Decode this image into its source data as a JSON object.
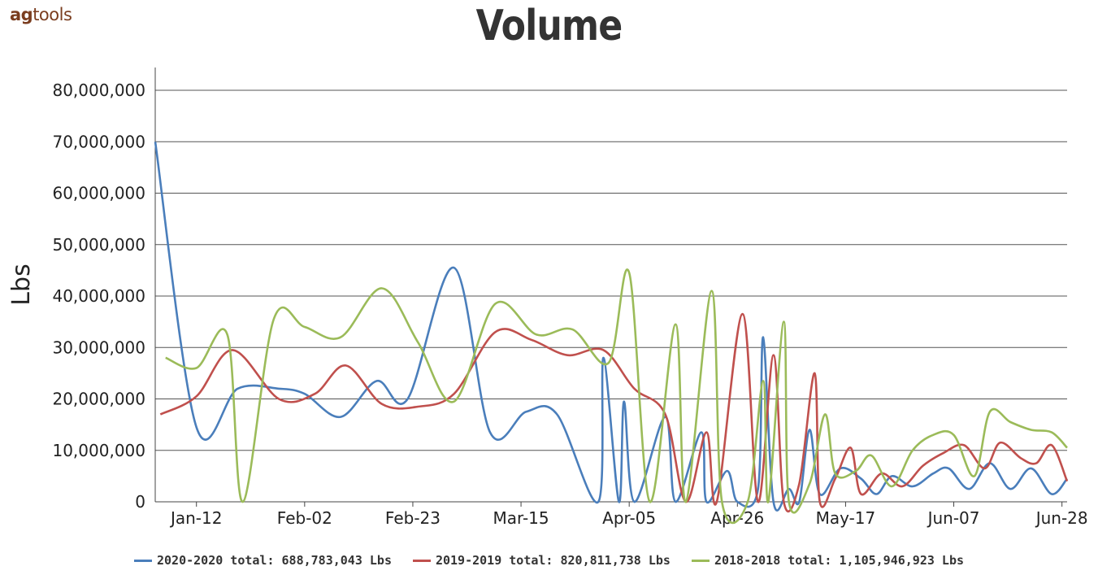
{
  "header": {
    "logo_ag": "ag",
    "logo_tools": "tools",
    "title": "Volume"
  },
  "chart_data": {
    "type": "line",
    "title": "Volume",
    "xlabel": "",
    "ylabel": "Lbs",
    "ylim": [
      0,
      80000000
    ],
    "yticks": [
      0,
      10000000,
      20000000,
      30000000,
      40000000,
      50000000,
      60000000,
      70000000,
      80000000
    ],
    "ytick_labels": [
      "0",
      "10,000,000",
      "20,000,000",
      "30,000,000",
      "40,000,000",
      "50,000,000",
      "60,000,000",
      "70,000,000",
      "80,000,000"
    ],
    "xlim": [
      "2020-01-04",
      "2020-06-29"
    ],
    "xtick_labels": [
      "Jan-12",
      "Feb-02",
      "Feb-23",
      "Mar-15",
      "Apr-05",
      "Apr-26",
      "May-17",
      "Jun-07",
      "Jun-28"
    ],
    "xtick_dates": [
      "2020-01-12",
      "2020-02-02",
      "2020-02-23",
      "2020-03-15",
      "2020-04-05",
      "2020-04-26",
      "2020-05-17",
      "2020-06-07",
      "2020-06-28"
    ],
    "grid": "horizontal",
    "legend_position": "bottom",
    "series": [
      {
        "name": "2020-2020 total: 688,783,043 Lbs",
        "color": "#4a7ebb",
        "points": [
          [
            "2020-01-04",
            70000000
          ],
          [
            "2020-01-12",
            14500000
          ],
          [
            "2020-01-20",
            22000000
          ],
          [
            "2020-01-28",
            22000000
          ],
          [
            "2020-02-02",
            21000000
          ],
          [
            "2020-02-09",
            16500000
          ],
          [
            "2020-02-16",
            23500000
          ],
          [
            "2020-02-22",
            20000000
          ],
          [
            "2020-03-02",
            45500000
          ],
          [
            "2020-03-09",
            13500000
          ],
          [
            "2020-03-16",
            17500000
          ],
          [
            "2020-03-22",
            17000000
          ],
          [
            "2020-03-30",
            0
          ],
          [
            "2020-03-31",
            28000000
          ],
          [
            "2020-04-03",
            0
          ],
          [
            "2020-04-04",
            19500000
          ],
          [
            "2020-04-06",
            0
          ],
          [
            "2020-04-12",
            16500000
          ],
          [
            "2020-04-14",
            0
          ],
          [
            "2020-04-19",
            13500000
          ],
          [
            "2020-04-20",
            0
          ],
          [
            "2020-04-24",
            6000000
          ],
          [
            "2020-04-26",
            0
          ],
          [
            "2020-04-30",
            2500000
          ],
          [
            "2020-05-01",
            32000000
          ],
          [
            "2020-05-03",
            0
          ],
          [
            "2020-05-06",
            2500000
          ],
          [
            "2020-05-08",
            0
          ],
          [
            "2020-05-10",
            14000000
          ],
          [
            "2020-05-12",
            1500000
          ],
          [
            "2020-05-16",
            6500000
          ],
          [
            "2020-05-20",
            4500000
          ],
          [
            "2020-05-23",
            1500000
          ],
          [
            "2020-05-26",
            5000000
          ],
          [
            "2020-05-30",
            3000000
          ],
          [
            "2020-06-03",
            5500000
          ],
          [
            "2020-06-06",
            6500000
          ],
          [
            "2020-06-10",
            2500000
          ],
          [
            "2020-06-14",
            7500000
          ],
          [
            "2020-06-18",
            2500000
          ],
          [
            "2020-06-22",
            6500000
          ],
          [
            "2020-06-26",
            1500000
          ],
          [
            "2020-06-29",
            4500000
          ]
        ]
      },
      {
        "name": "2019-2019 total: 820,811,738 Lbs",
        "color": "#c0504d",
        "points": [
          [
            "2020-01-05",
            17000000
          ],
          [
            "2020-01-12",
            20500000
          ],
          [
            "2020-01-19",
            29500000
          ],
          [
            "2020-01-28",
            20000000
          ],
          [
            "2020-02-04",
            21000000
          ],
          [
            "2020-02-10",
            26500000
          ],
          [
            "2020-02-17",
            19000000
          ],
          [
            "2020-02-24",
            18500000
          ],
          [
            "2020-03-02",
            21000000
          ],
          [
            "2020-03-10",
            33000000
          ],
          [
            "2020-03-17",
            31500000
          ],
          [
            "2020-03-24",
            28500000
          ],
          [
            "2020-03-31",
            29500000
          ],
          [
            "2020-04-06",
            22000000
          ],
          [
            "2020-04-12",
            17000000
          ],
          [
            "2020-04-16",
            0
          ],
          [
            "2020-04-20",
            13500000
          ],
          [
            "2020-04-22",
            0
          ],
          [
            "2020-04-27",
            36500000
          ],
          [
            "2020-04-30",
            0
          ],
          [
            "2020-05-03",
            28500000
          ],
          [
            "2020-05-05",
            0
          ],
          [
            "2020-05-08",
            3500000
          ],
          [
            "2020-05-11",
            25000000
          ],
          [
            "2020-05-12",
            0
          ],
          [
            "2020-05-15",
            4500000
          ],
          [
            "2020-05-18",
            10500000
          ],
          [
            "2020-05-20",
            1500000
          ],
          [
            "2020-05-24",
            5500000
          ],
          [
            "2020-05-28",
            3000000
          ],
          [
            "2020-06-01",
            7000000
          ],
          [
            "2020-06-05",
            9500000
          ],
          [
            "2020-06-09",
            11000000
          ],
          [
            "2020-06-13",
            6500000
          ],
          [
            "2020-06-16",
            11500000
          ],
          [
            "2020-06-20",
            8500000
          ],
          [
            "2020-06-23",
            7500000
          ],
          [
            "2020-06-26",
            11000000
          ],
          [
            "2020-06-29",
            4000000
          ]
        ]
      },
      {
        "name": "2018-2018 total: 1,105,946,923 Lbs",
        "color": "#9bbb59",
        "points": [
          [
            "2020-01-06",
            28000000
          ],
          [
            "2020-01-12",
            26000000
          ],
          [
            "2020-01-18",
            32500000
          ],
          [
            "2020-01-21",
            0
          ],
          [
            "2020-01-27",
            35500000
          ],
          [
            "2020-02-02",
            34000000
          ],
          [
            "2020-02-09",
            32000000
          ],
          [
            "2020-02-17",
            41500000
          ],
          [
            "2020-02-24",
            31000000
          ],
          [
            "2020-03-02",
            19500000
          ],
          [
            "2020-03-10",
            38500000
          ],
          [
            "2020-03-18",
            32500000
          ],
          [
            "2020-03-25",
            33500000
          ],
          [
            "2020-04-01",
            27000000
          ],
          [
            "2020-04-05",
            44500000
          ],
          [
            "2020-04-09",
            0
          ],
          [
            "2020-04-14",
            34500000
          ],
          [
            "2020-04-16",
            0
          ],
          [
            "2020-04-21",
            41000000
          ],
          [
            "2020-04-23",
            0
          ],
          [
            "2020-04-28",
            0
          ],
          [
            "2020-05-01",
            23500000
          ],
          [
            "2020-05-02",
            0
          ],
          [
            "2020-05-05",
            35000000
          ],
          [
            "2020-05-06",
            0
          ],
          [
            "2020-05-10",
            3500000
          ],
          [
            "2020-05-13",
            17000000
          ],
          [
            "2020-05-15",
            5500000
          ],
          [
            "2020-05-19",
            6000000
          ],
          [
            "2020-05-22",
            9000000
          ],
          [
            "2020-05-26",
            3000000
          ],
          [
            "2020-05-30",
            10000000
          ],
          [
            "2020-06-03",
            13000000
          ],
          [
            "2020-06-07",
            13000000
          ],
          [
            "2020-06-11",
            5000000
          ],
          [
            "2020-06-14",
            17500000
          ],
          [
            "2020-06-18",
            15500000
          ],
          [
            "2020-06-22",
            14000000
          ],
          [
            "2020-06-26",
            13500000
          ],
          [
            "2020-06-29",
            10500000
          ]
        ]
      }
    ]
  }
}
